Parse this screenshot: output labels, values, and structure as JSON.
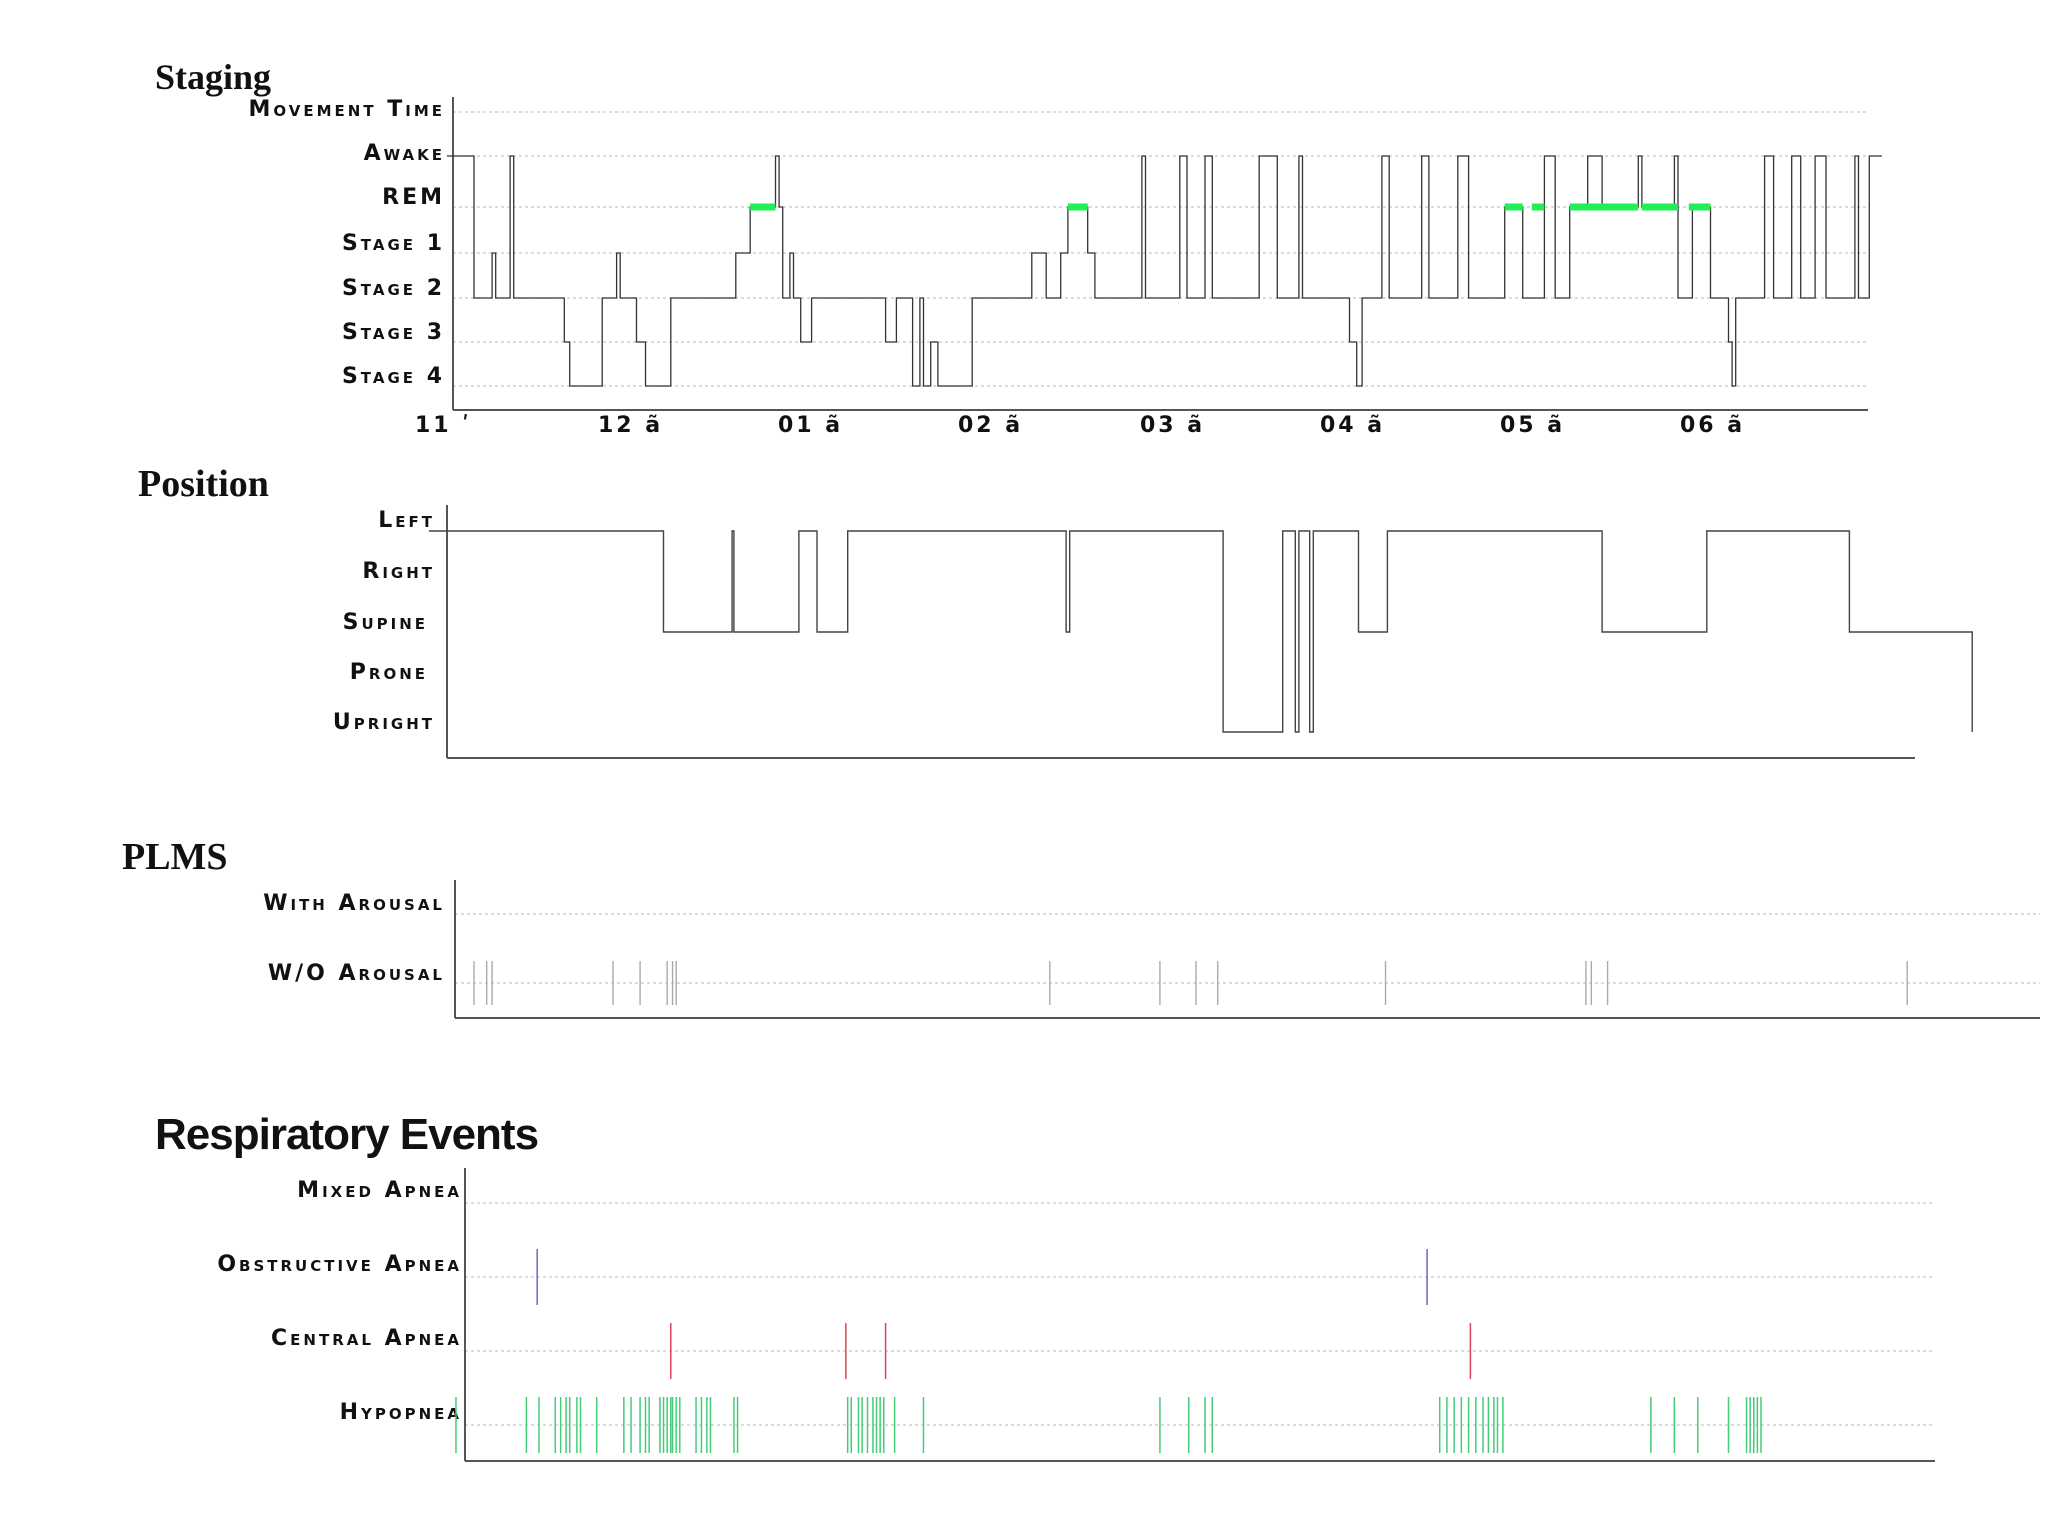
{
  "chart_data": [
    {
      "type": "line",
      "title": "Staging",
      "levels": [
        "Movement Time",
        "Awake",
        "REM",
        "Stage 1",
        "Stage 2",
        "Stage 3",
        "Stage 4"
      ],
      "x_ticks": [
        {
          "label": "11 ʹ",
          "hour": 0
        },
        {
          "label": "12 ã",
          "hour": 1
        },
        {
          "label": "01 ã",
          "hour": 2
        },
        {
          "label": "02 ã",
          "hour": 3
        },
        {
          "label": "03 ã",
          "hour": 4
        },
        {
          "label": "04 ã",
          "hour": 5
        },
        {
          "label": "05 ã",
          "hour": 6
        },
        {
          "label": "06 ã",
          "hour": 7
        }
      ],
      "xlim_hours": [
        -0.2,
        7.85
      ],
      "hypnogram": [
        [
          -0.1,
          1
        ],
        [
          0.05,
          1
        ],
        [
          0.05,
          4
        ],
        [
          0.15,
          4
        ],
        [
          0.15,
          3
        ],
        [
          0.17,
          3
        ],
        [
          0.17,
          4
        ],
        [
          0.25,
          4
        ],
        [
          0.25,
          1
        ],
        [
          0.27,
          1
        ],
        [
          0.27,
          4
        ],
        [
          0.55,
          4
        ],
        [
          0.55,
          5
        ],
        [
          0.58,
          5
        ],
        [
          0.58,
          6
        ],
        [
          0.76,
          6
        ],
        [
          0.76,
          4
        ],
        [
          0.84,
          4
        ],
        [
          0.84,
          3
        ],
        [
          0.86,
          3
        ],
        [
          0.86,
          4
        ],
        [
          0.95,
          4
        ],
        [
          0.95,
          5
        ],
        [
          1.0,
          5
        ],
        [
          1.0,
          6
        ],
        [
          1.14,
          6
        ],
        [
          1.14,
          4
        ],
        [
          1.5,
          4
        ],
        [
          1.5,
          3
        ],
        [
          1.58,
          3
        ],
        [
          1.58,
          2
        ],
        [
          1.72,
          2
        ],
        [
          1.72,
          1
        ],
        [
          1.74,
          1
        ],
        [
          1.74,
          2
        ],
        [
          1.76,
          2
        ],
        [
          1.76,
          4
        ],
        [
          1.8,
          4
        ],
        [
          1.8,
          3
        ],
        [
          1.82,
          3
        ],
        [
          1.82,
          4
        ],
        [
          1.86,
          4
        ],
        [
          1.86,
          5
        ],
        [
          1.92,
          5
        ],
        [
          1.92,
          4
        ],
        [
          2.33,
          4
        ],
        [
          2.33,
          5
        ],
        [
          2.39,
          5
        ],
        [
          2.39,
          4
        ],
        [
          2.48,
          4
        ],
        [
          2.48,
          6
        ],
        [
          2.52,
          6
        ],
        [
          2.52,
          4
        ],
        [
          2.54,
          4
        ],
        [
          2.54,
          6
        ],
        [
          2.58,
          6
        ],
        [
          2.58,
          5
        ],
        [
          2.62,
          5
        ],
        [
          2.62,
          6
        ],
        [
          2.81,
          6
        ],
        [
          2.81,
          4
        ],
        [
          3.14,
          4
        ],
        [
          3.14,
          3
        ],
        [
          3.22,
          3
        ],
        [
          3.22,
          4
        ],
        [
          3.3,
          4
        ],
        [
          3.3,
          3
        ],
        [
          3.34,
          3
        ],
        [
          3.34,
          2
        ],
        [
          3.45,
          2
        ],
        [
          3.45,
          3
        ],
        [
          3.49,
          3
        ],
        [
          3.49,
          4
        ],
        [
          3.75,
          4
        ],
        [
          3.75,
          1
        ],
        [
          3.77,
          1
        ],
        [
          3.77,
          4
        ],
        [
          3.96,
          4
        ],
        [
          3.96,
          1
        ],
        [
          4.0,
          1
        ],
        [
          4.0,
          4
        ],
        [
          4.1,
          4
        ],
        [
          4.1,
          1
        ],
        [
          4.14,
          1
        ],
        [
          4.14,
          4
        ],
        [
          4.4,
          4
        ],
        [
          4.4,
          1
        ],
        [
          4.5,
          1
        ],
        [
          4.5,
          4
        ],
        [
          4.62,
          4
        ],
        [
          4.62,
          1
        ],
        [
          4.64,
          1
        ],
        [
          4.64,
          4
        ],
        [
          4.9,
          4
        ],
        [
          4.9,
          5
        ],
        [
          4.94,
          5
        ],
        [
          4.94,
          6
        ],
        [
          4.97,
          6
        ],
        [
          4.97,
          4
        ],
        [
          5.08,
          4
        ],
        [
          5.08,
          1
        ],
        [
          5.12,
          1
        ],
        [
          5.12,
          4
        ],
        [
          5.3,
          4
        ],
        [
          5.3,
          1
        ],
        [
          5.34,
          1
        ],
        [
          5.34,
          4
        ],
        [
          5.5,
          4
        ],
        [
          5.5,
          1
        ],
        [
          5.56,
          1
        ],
        [
          5.56,
          4
        ],
        [
          5.76,
          4
        ],
        [
          5.76,
          2
        ],
        [
          5.86,
          2
        ],
        [
          5.86,
          4
        ],
        [
          5.98,
          4
        ],
        [
          5.98,
          1
        ],
        [
          6.04,
          1
        ],
        [
          6.04,
          4
        ],
        [
          6.12,
          4
        ],
        [
          6.12,
          2
        ],
        [
          6.22,
          2
        ],
        [
          6.22,
          1
        ],
        [
          6.3,
          1
        ],
        [
          6.3,
          2
        ],
        [
          6.5,
          2
        ],
        [
          6.5,
          1
        ],
        [
          6.52,
          1
        ],
        [
          6.52,
          2
        ],
        [
          6.7,
          2
        ],
        [
          6.7,
          1
        ],
        [
          6.72,
          1
        ],
        [
          6.72,
          4
        ],
        [
          6.8,
          4
        ],
        [
          6.8,
          2
        ],
        [
          6.9,
          2
        ],
        [
          6.9,
          4
        ],
        [
          7.0,
          4
        ],
        [
          7.0,
          5
        ],
        [
          7.02,
          5
        ],
        [
          7.02,
          6
        ],
        [
          7.04,
          6
        ],
        [
          7.04,
          4
        ],
        [
          7.2,
          4
        ],
        [
          7.2,
          1
        ],
        [
          7.25,
          1
        ],
        [
          7.25,
          4
        ],
        [
          7.35,
          4
        ],
        [
          7.35,
          1
        ],
        [
          7.4,
          1
        ],
        [
          7.4,
          4
        ],
        [
          7.48,
          4
        ],
        [
          7.48,
          1
        ],
        [
          7.54,
          1
        ],
        [
          7.54,
          4
        ],
        [
          7.7,
          4
        ],
        [
          7.7,
          1
        ],
        [
          7.72,
          1
        ],
        [
          7.72,
          4
        ],
        [
          7.78,
          4
        ],
        [
          7.78,
          1
        ],
        [
          7.85,
          1
        ]
      ],
      "rem_segments": [
        [
          1.58,
          1.72
        ],
        [
          3.34,
          3.45
        ],
        [
          5.76,
          5.86
        ],
        [
          5.91,
          5.98
        ],
        [
          6.12,
          6.5
        ],
        [
          6.52,
          6.72
        ],
        [
          6.78,
          6.9
        ]
      ],
      "rem_color": "#22ee55"
    },
    {
      "type": "line",
      "title": "Position",
      "levels": [
        "Left",
        "Right",
        "Supine",
        "Prone",
        "Upright"
      ],
      "hypnogram": [
        [
          -0.2,
          0
        ],
        [
          1.1,
          0
        ],
        [
          1.1,
          2
        ],
        [
          1.48,
          2
        ],
        [
          1.48,
          0
        ],
        [
          1.49,
          0
        ],
        [
          1.49,
          2
        ],
        [
          1.85,
          2
        ],
        [
          1.85,
          0
        ],
        [
          1.95,
          0
        ],
        [
          1.95,
          2
        ],
        [
          2.12,
          2
        ],
        [
          2.12,
          0
        ],
        [
          3.33,
          0
        ],
        [
          3.33,
          2
        ],
        [
          3.35,
          2
        ],
        [
          3.35,
          0
        ],
        [
          4.2,
          0
        ],
        [
          4.2,
          4
        ],
        [
          4.53,
          4
        ],
        [
          4.53,
          0
        ],
        [
          4.6,
          0
        ],
        [
          4.6,
          4
        ],
        [
          4.62,
          4
        ],
        [
          4.62,
          0
        ],
        [
          4.68,
          0
        ],
        [
          4.68,
          4
        ],
        [
          4.7,
          4
        ],
        [
          4.7,
          0
        ],
        [
          4.95,
          0
        ],
        [
          4.95,
          2
        ],
        [
          5.11,
          2
        ],
        [
          5.11,
          0
        ],
        [
          6.3,
          0
        ],
        [
          6.3,
          2
        ],
        [
          6.88,
          2
        ],
        [
          6.88,
          0
        ],
        [
          7.67,
          0
        ],
        [
          7.67,
          2
        ],
        [
          8.35,
          2
        ],
        [
          8.35,
          4
        ]
      ]
    },
    {
      "type": "scatter",
      "title": "PLMS",
      "levels": [
        "With Arousal",
        "W/O Arousal"
      ],
      "events": {
        "With Arousal": [],
        "W/O Arousal": [
          0.05,
          0.12,
          0.15,
          0.82,
          0.97,
          1.12,
          1.15,
          1.17,
          3.24,
          3.85,
          4.05,
          4.17,
          5.1,
          6.21,
          6.24,
          6.33,
          7.99
        ]
      }
    },
    {
      "type": "scatter",
      "title": "Respiratory Events",
      "levels": [
        "Mixed Apnea",
        "Obstructive Apnea",
        "Central Apnea",
        "Hypopnea"
      ],
      "events": {
        "Mixed Apnea": [],
        "Obstructive Apnea": [
          0.4,
          5.33
        ],
        "Central Apnea": [
          1.14,
          2.11,
          2.33,
          5.57
        ],
        "Hypopnea": [
          -0.05,
          0.34,
          0.41,
          0.5,
          0.53,
          0.56,
          0.58,
          0.62,
          0.64,
          0.73,
          0.88,
          0.92,
          0.97,
          1.0,
          1.02,
          1.08,
          1.1,
          1.12,
          1.14,
          1.15,
          1.17,
          1.19,
          1.28,
          1.31,
          1.34,
          1.36,
          1.49,
          1.51,
          2.12,
          2.14,
          2.18,
          2.2,
          2.23,
          2.26,
          2.28,
          2.3,
          2.32,
          2.38,
          2.54,
          3.85,
          4.01,
          4.1,
          4.14,
          5.4,
          5.44,
          5.48,
          5.52,
          5.56,
          5.6,
          5.64,
          5.67,
          5.7,
          5.72,
          5.75,
          6.57,
          6.7,
          6.83,
          7.0,
          7.1,
          7.12,
          7.14,
          7.16,
          7.18
        ]
      },
      "colors": {
        "Mixed Apnea": "#888888",
        "Obstructive Apnea": "#6666cc",
        "Central Apnea": "#dd4455",
        "Hypopnea": "#44cc77"
      }
    }
  ]
}
